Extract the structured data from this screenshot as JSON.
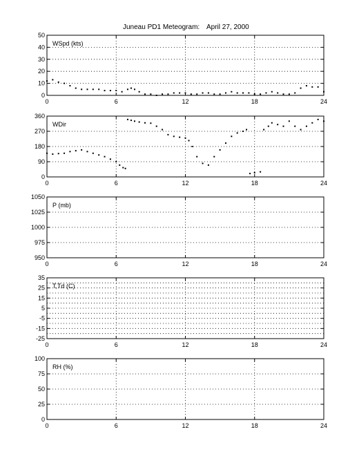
{
  "title": "Juneau PD1 Meteogram:",
  "date": "April 27, 2000",
  "chart_data": [
    {
      "type": "scatter",
      "label": "WSpd (kts)",
      "xlim": [
        0,
        24
      ],
      "xticks": [
        0,
        6,
        12,
        18,
        24
      ],
      "ylim": [
        0,
        50
      ],
      "yticks": [
        0,
        10,
        20,
        30,
        40,
        50
      ],
      "grid": true,
      "series": [
        {
          "color": "#000000",
          "x": [
            0.0,
            0.5,
            1.0,
            1.5,
            2.0,
            2.5,
            3.0,
            3.5,
            4.0,
            4.5,
            5.0,
            5.5,
            6.0,
            6.5,
            7.0,
            7.3,
            7.6,
            8.0,
            8.5,
            9.0,
            9.5,
            10.0,
            10.5,
            11.0,
            11.5,
            12.0,
            12.5,
            13.0,
            13.5,
            14.0,
            14.5,
            15.0,
            15.5,
            16.0,
            16.5,
            17.0,
            17.5,
            18.0,
            18.5,
            19.0,
            19.5,
            20.0,
            20.5,
            21.0,
            21.5,
            22.0,
            22.5,
            23.0,
            23.5,
            24.0
          ],
          "y": [
            12,
            13,
            11,
            10,
            8,
            6,
            5,
            5,
            5,
            5,
            4,
            4,
            4,
            3,
            5,
            6,
            5,
            3,
            1,
            1,
            0,
            1,
            1,
            2,
            2,
            2,
            1,
            1,
            2,
            2,
            1,
            1,
            2,
            3,
            2,
            2,
            2,
            1,
            1,
            2,
            3,
            2,
            1,
            1,
            2,
            6,
            8,
            7,
            7,
            3
          ]
        }
      ]
    },
    {
      "type": "scatter",
      "label": "WDir",
      "xlim": [
        0,
        24
      ],
      "xticks": [
        0,
        6,
        12,
        18,
        24
      ],
      "ylim": [
        0,
        360
      ],
      "yticks": [
        0,
        90,
        180,
        270,
        360
      ],
      "grid": true,
      "series": [
        {
          "color": "#000000",
          "x": [
            0.0,
            0.5,
            1.0,
            1.5,
            2.0,
            2.5,
            3.0,
            3.5,
            4.0,
            4.5,
            5.0,
            5.5,
            6.0,
            6.3,
            6.6,
            6.8,
            7.0,
            7.3,
            7.6,
            8.0,
            8.5,
            9.0,
            9.5,
            10.0,
            10.5,
            11.0,
            11.5,
            12.0,
            12.3,
            12.6,
            13.0,
            13.5,
            14.0,
            14.5,
            15.0,
            15.5,
            16.0,
            16.5,
            17.0,
            17.3,
            17.6,
            18.0,
            18.5,
            18.8,
            19.2,
            19.5,
            20.0,
            20.5,
            21.0,
            21.5,
            22.0,
            22.5,
            23.0,
            23.5,
            24.0
          ],
          "y": [
            140,
            135,
            138,
            140,
            150,
            155,
            160,
            150,
            140,
            130,
            120,
            105,
            90,
            70,
            55,
            50,
            340,
            335,
            330,
            325,
            320,
            318,
            300,
            280,
            250,
            240,
            235,
            230,
            215,
            180,
            120,
            80,
            70,
            120,
            160,
            200,
            240,
            260,
            270,
            280,
            20,
            25,
            30,
            280,
            300,
            320,
            310,
            300,
            330,
            300,
            280,
            300,
            320,
            340,
            330
          ]
        }
      ]
    },
    {
      "type": "scatter",
      "label": "P (mb)",
      "xlim": [
        0,
        24
      ],
      "xticks": [
        0,
        6,
        12,
        18,
        24
      ],
      "ylim": [
        950,
        1050
      ],
      "yticks": [
        950,
        975,
        1000,
        1025,
        1050
      ],
      "grid": true,
      "series": []
    },
    {
      "type": "scatter",
      "label": "T,Td (C)",
      "xlim": [
        0,
        24
      ],
      "xticks": [
        0,
        6,
        12,
        18,
        24
      ],
      "ylim": [
        -25,
        35
      ],
      "yticks": [
        -25,
        -15,
        -5,
        5,
        15,
        25,
        35
      ],
      "minor_yticks": [
        -20,
        -10,
        0,
        10,
        20,
        30
      ],
      "grid": true,
      "series": []
    },
    {
      "type": "scatter",
      "label": "RH (%)",
      "xlim": [
        0,
        24
      ],
      "xticks": [
        0,
        6,
        12,
        18,
        24
      ],
      "ylim": [
        0,
        100
      ],
      "yticks": [
        0,
        25,
        50,
        75,
        100
      ],
      "grid": true,
      "series": []
    }
  ]
}
